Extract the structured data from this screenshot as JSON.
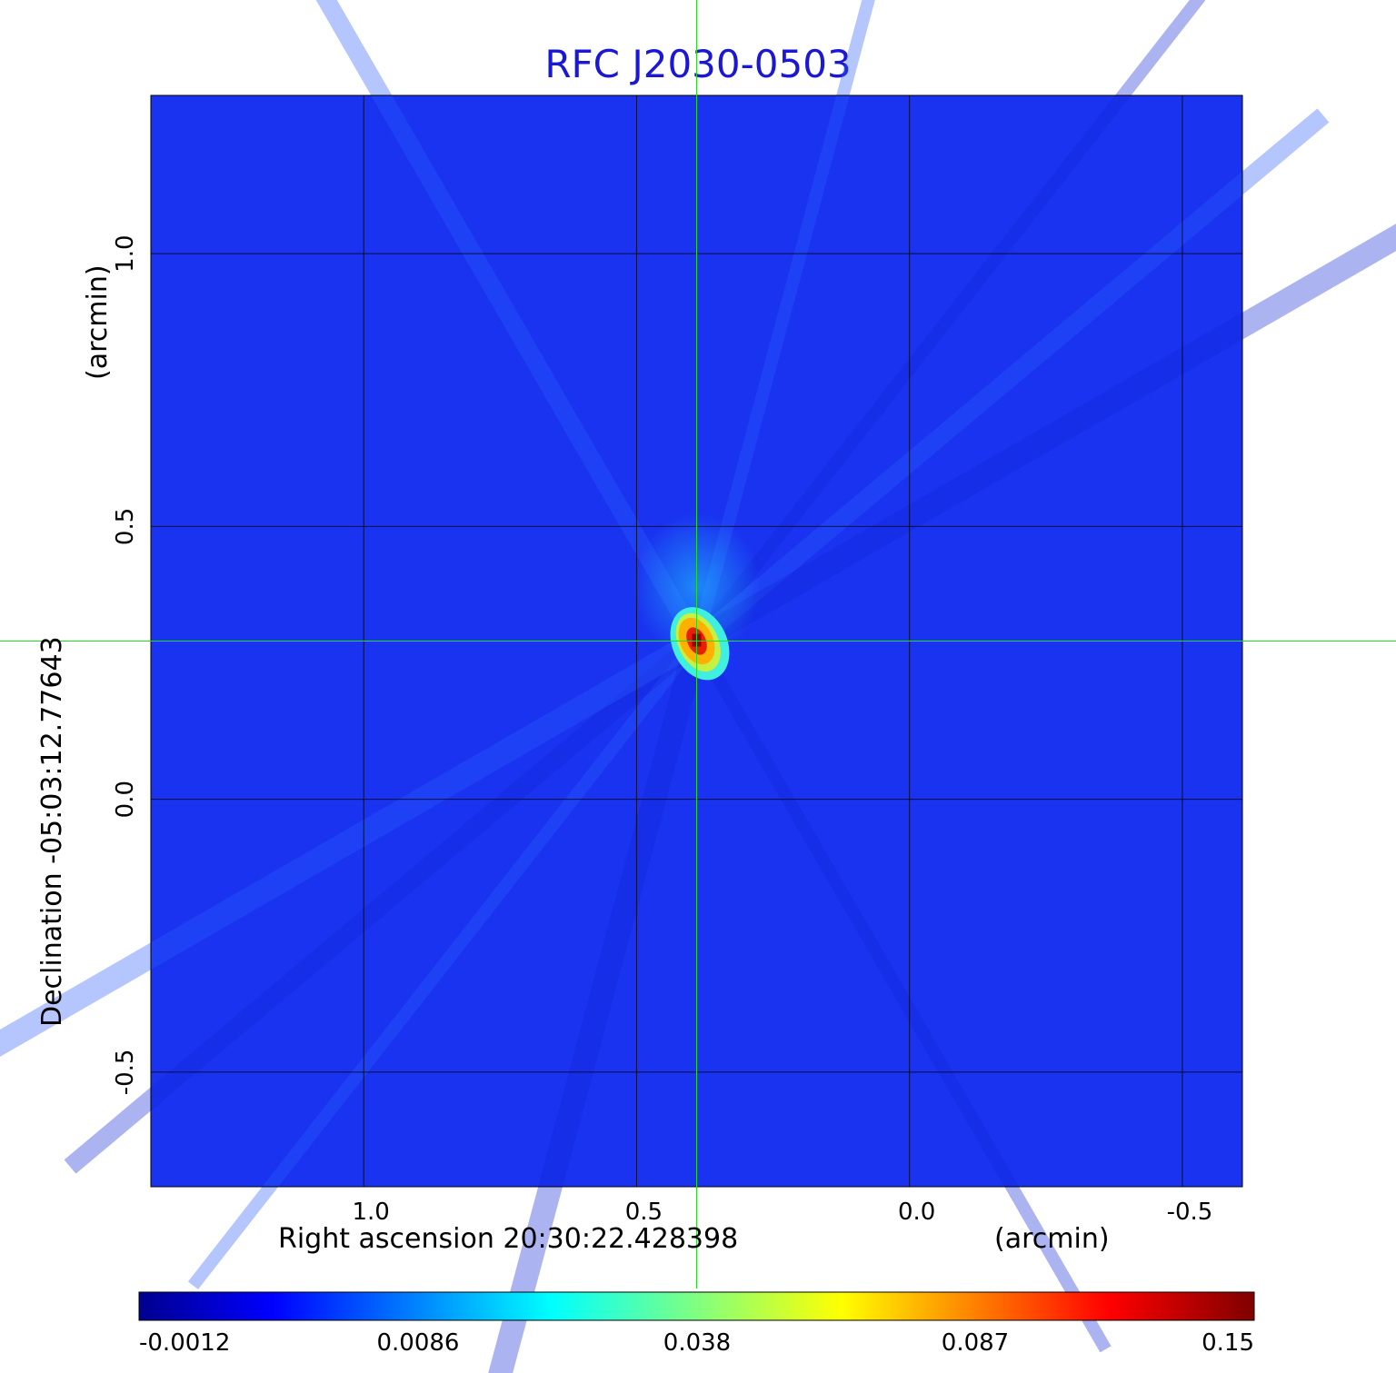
{
  "chart_data": {
    "type": "heatmap",
    "title": "RFC J2030-0503",
    "xlabel": "Right ascension  20:30:22.428398",
    "xlabel_unit": "(arcmin)",
    "ylabel": "Declination  -05:03:12.77643",
    "ylabel_unit": "(arcmin)",
    "xlim": [
      1.39,
      -0.61
    ],
    "ylim": [
      -0.71,
      1.29
    ],
    "x_ticks": [
      1.0,
      0.5,
      0.0,
      -0.5
    ],
    "x_tick_labels": [
      "1.0",
      "0.5",
      "0.0",
      "-0.5"
    ],
    "y_ticks": [
      1.0,
      0.5,
      0.0,
      -0.5
    ],
    "y_tick_labels": [
      "1.0",
      "0.5",
      "0.0",
      "-0.5"
    ],
    "grid": true,
    "crosshair": {
      "x": 0.39,
      "y": 0.29,
      "color": "#22dd22"
    },
    "peak": {
      "x": 0.39,
      "y": 0.29,
      "value": 0.15
    },
    "colormap": "jet",
    "colorbar": {
      "ticks": [
        -0.0012,
        0.0086,
        0.038,
        0.087,
        0.15
      ],
      "tick_labels": [
        "-0.0012",
        "0.0086",
        "0.038",
        "0.087",
        "0.15"
      ],
      "orientation": "horizontal"
    }
  }
}
